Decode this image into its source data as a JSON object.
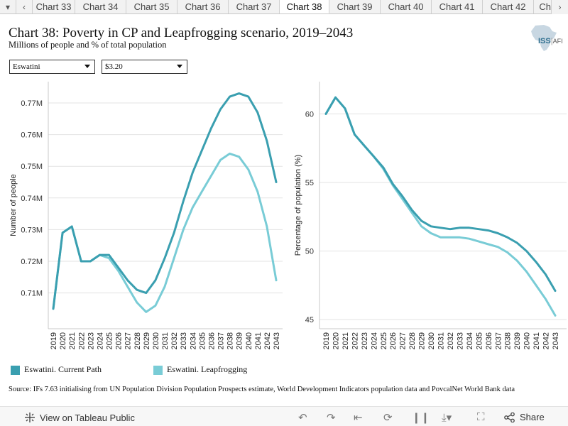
{
  "tabs": {
    "prev": "◂",
    "items": [
      "Chart 33",
      "Chart 34",
      "Chart 35",
      "Chart 36",
      "Chart 37",
      "Chart 38",
      "Chart 39",
      "Chart 40",
      "Chart 41",
      "Chart 42",
      "Char"
    ],
    "active_index": 5,
    "next": "›"
  },
  "header": {
    "title": "Chart 38: Poverty in CP and Leapfrogging scenario, 2019–2043",
    "subtitle": "Millions of people and % of total population"
  },
  "logo": {
    "text": "ISS",
    "suffix": "AFI"
  },
  "filters": {
    "country": "Eswatini",
    "threshold": "$3.20"
  },
  "colors": {
    "current_path": "#3a9fb0",
    "leapfrogging": "#79ccd6",
    "grid": "#e3e3e3"
  },
  "chart_data": [
    {
      "type": "line",
      "ylabel": "Number of people",
      "yticks": [
        "0.71M",
        "0.72M",
        "0.73M",
        "0.74M",
        "0.75M",
        "0.76M",
        "0.77M"
      ],
      "ytick_values": [
        0.71,
        0.72,
        0.73,
        0.74,
        0.75,
        0.76,
        0.77
      ],
      "ylim": [
        0.7005,
        0.7765
      ],
      "x": [
        2019,
        2020,
        2021,
        2022,
        2023,
        2024,
        2025,
        2026,
        2027,
        2028,
        2029,
        2030,
        2031,
        2032,
        2033,
        2034,
        2035,
        2036,
        2037,
        2038,
        2039,
        2040,
        2041,
        2042,
        2043
      ],
      "series": [
        {
          "name": "Eswatini. Current Path",
          "values": [
            0.705,
            0.729,
            0.731,
            0.72,
            0.72,
            0.722,
            0.722,
            0.718,
            0.714,
            0.711,
            0.71,
            0.714,
            0.721,
            0.729,
            0.739,
            0.748,
            0.755,
            0.762,
            0.768,
            0.772,
            0.773,
            0.772,
            0.767,
            0.758,
            0.745
          ]
        },
        {
          "name": "Eswatini. Leapfrogging",
          "values": [
            0.705,
            0.729,
            0.731,
            0.72,
            0.72,
            0.722,
            0.721,
            0.717,
            0.712,
            0.707,
            0.704,
            0.706,
            0.712,
            0.721,
            0.73,
            0.737,
            0.742,
            0.747,
            0.752,
            0.754,
            0.753,
            0.749,
            0.742,
            0.731,
            0.714
          ]
        }
      ],
      "grid": true
    },
    {
      "type": "line",
      "ylabel": "Percentage of population (%)",
      "yticks": [
        "45",
        "50",
        "55",
        "60"
      ],
      "ytick_values": [
        45,
        50,
        55,
        60
      ],
      "ylim": [
        44.7,
        62.3
      ],
      "x": [
        2019,
        2020,
        2021,
        2022,
        2023,
        2024,
        2025,
        2026,
        2027,
        2028,
        2029,
        2030,
        2031,
        2032,
        2033,
        2034,
        2035,
        2036,
        2037,
        2038,
        2039,
        2040,
        2041,
        2042,
        2043
      ],
      "series": [
        {
          "name": "Eswatini. Current Path",
          "values": [
            60.0,
            61.2,
            60.4,
            58.5,
            57.7,
            56.9,
            56.1,
            54.9,
            54.0,
            53.0,
            52.2,
            51.8,
            51.7,
            51.6,
            51.7,
            51.7,
            51.6,
            51.5,
            51.3,
            51.0,
            50.6,
            50.0,
            49.2,
            48.3,
            47.1
          ]
        },
        {
          "name": "Eswatini. Leapfrogging",
          "values": [
            60.0,
            61.2,
            60.4,
            58.5,
            57.7,
            56.9,
            56.0,
            54.8,
            53.8,
            52.8,
            51.8,
            51.3,
            51.0,
            51.0,
            51.0,
            50.9,
            50.7,
            50.5,
            50.3,
            49.9,
            49.3,
            48.5,
            47.5,
            46.5,
            45.3
          ]
        }
      ],
      "grid": true
    }
  ],
  "legend": {
    "current_path": "Eswatini. Current Path",
    "leapfrogging": "Eswatini. Leapfrogging"
  },
  "source": "Source: IFs 7.63 initialising from UN Population Division Population Prospects estimate, World Development Indicators population data and PovcalNet World Bank data",
  "toolbar": {
    "view_link": "View on Tableau Public",
    "share": "Share"
  }
}
